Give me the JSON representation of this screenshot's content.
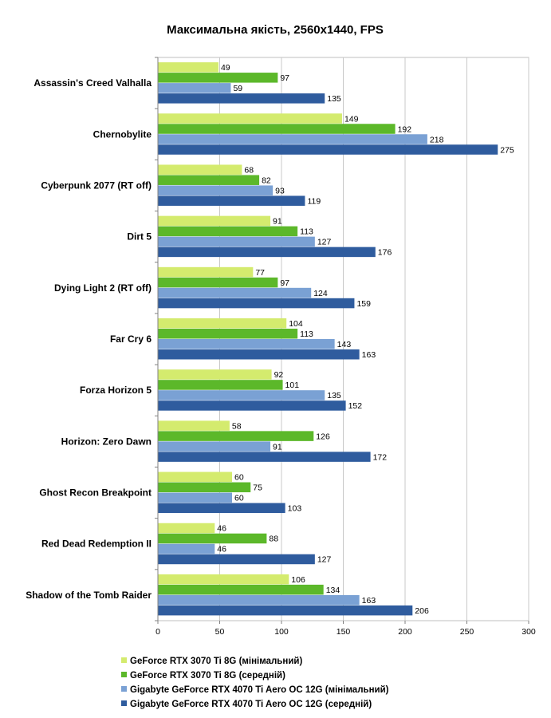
{
  "chart_data": {
    "type": "bar",
    "orientation": "horizontal",
    "title": "Максимальна якість, 2560x1440, FPS",
    "categories": [
      "Assassin's Creed Valhalla",
      "Chernobylite",
      "Cyberpunk 2077 (RT off)",
      "Dirt 5",
      "Dying Light 2 (RT off)",
      "Far Cry 6",
      "Forza Horizon 5",
      "Horizon: Zero Dawn",
      "Ghost Recon Breakpoint",
      "Red Dead Redemption II",
      "Shadow of the Tomb Raider"
    ],
    "series": [
      {
        "name": "GeForce RTX 3070 Ti 8G (мінімальний)",
        "color": "#d4eb6e",
        "values": [
          49,
          149,
          68,
          91,
          77,
          104,
          92,
          58,
          60,
          46,
          106
        ]
      },
      {
        "name": "GeForce RTX 3070 Ti 8G (середній)",
        "color": "#5cb82a",
        "values": [
          97,
          192,
          82,
          113,
          97,
          113,
          101,
          126,
          75,
          88,
          134
        ]
      },
      {
        "name": "Gigabyte GeForce RTX 4070 Ti Aero OC 12G (мінімальний)",
        "color": "#7aa1d4",
        "values": [
          59,
          218,
          93,
          127,
          124,
          143,
          135,
          91,
          60,
          46,
          163
        ]
      },
      {
        "name": "Gigabyte GeForce RTX 4070 Ti Aero OC 12G (середній)",
        "color": "#2f5c9e",
        "values": [
          135,
          275,
          119,
          176,
          159,
          163,
          152,
          172,
          103,
          127,
          206
        ]
      }
    ],
    "xlim": [
      0,
      300
    ],
    "xticks": [
      "0",
      "50",
      "100",
      "150",
      "200",
      "250",
      "300"
    ],
    "grid": true,
    "legend_position": "bottom"
  }
}
